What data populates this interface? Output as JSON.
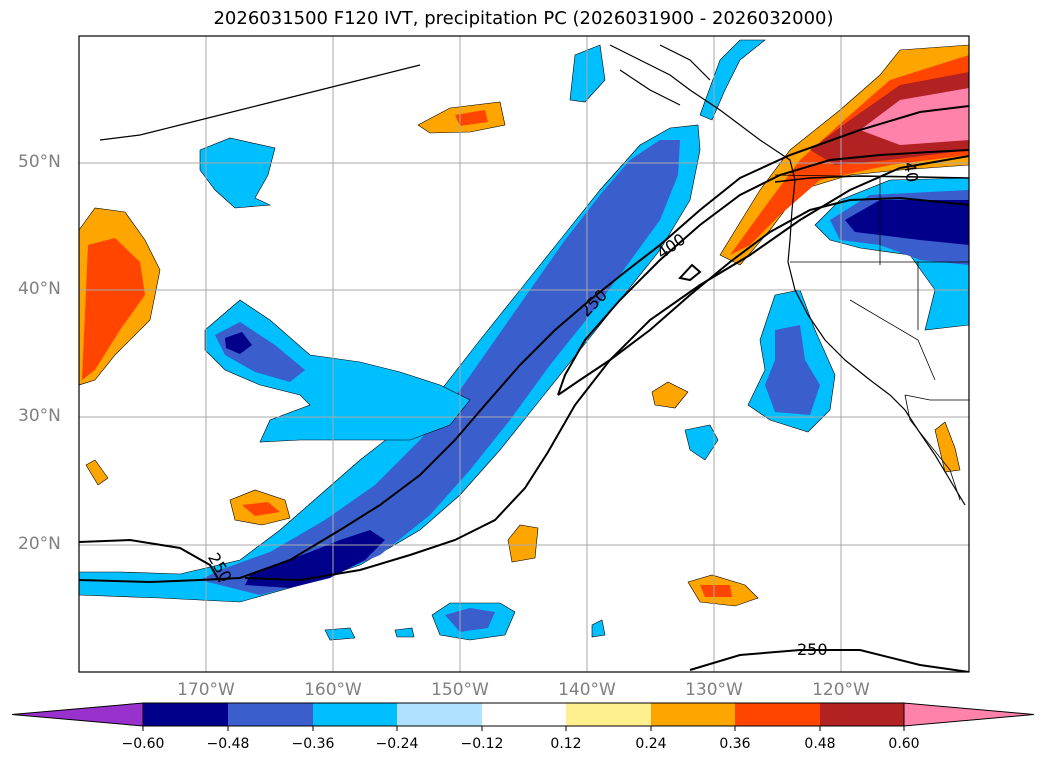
{
  "title": "2026031500 F120 IVT, precipitation PC (2026031900 - 2026032000)",
  "latitude_labels": [
    "50°N",
    "40°N",
    "30°N",
    "20°N"
  ],
  "longitude_labels": [
    "170°W",
    "160°W",
    "150°W",
    "140°W",
    "130°W",
    "120°W"
  ],
  "contour_labels": [
    "250",
    "400",
    "250",
    "40",
    "250"
  ],
  "colorbar": {
    "ticks": [
      "−0.60",
      "−0.48",
      "−0.36",
      "−0.24",
      "−0.12",
      "0.12",
      "0.24",
      "0.36",
      "0.48",
      "0.60"
    ],
    "colors": [
      "#9932cc",
      "#00008b",
      "#3a5fcd",
      "#00bfff",
      "#b0e2ff",
      "#ffffff",
      "#fff08f",
      "#ffa500",
      "#ff4500",
      "#b22222",
      "#ff82ab"
    ]
  },
  "chart_data": {
    "type": "heatmap",
    "title": "2026031500 F120 IVT, precipitation PC (2026031900 - 2026032000)",
    "variables": [
      "IVT contours",
      "precipitation PC (shaded)"
    ],
    "ivt_contour_levels": [
      250,
      400
    ],
    "colorbar_levels": [
      -0.6,
      -0.48,
      -0.36,
      -0.24,
      -0.12,
      0.12,
      0.24,
      0.36,
      0.48,
      0.6
    ],
    "lon_range": [
      -180,
      -110
    ],
    "lat_range": [
      10,
      60
    ]
  }
}
